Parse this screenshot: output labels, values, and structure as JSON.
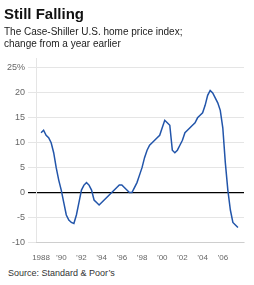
{
  "chart_data": {
    "type": "line",
    "title": "Still Falling",
    "subtitle": "The Case-Shiller U.S. home price index;\nchange from a year earlier",
    "source": "Source: Standard & Poor’s",
    "color": "#2255aa",
    "grid": "y",
    "xlim": [
      1987.5,
      2008.1
    ],
    "xticks": [
      1988,
      {
        "value": 1990,
        "label": "’90"
      },
      {
        "value": 1992,
        "label": "’92"
      },
      {
        "value": 1994,
        "label": "’94"
      },
      {
        "value": 1996,
        "label": "’96"
      },
      {
        "value": 1998,
        "label": "’98"
      },
      {
        "value": 2000,
        "label": "’00"
      },
      {
        "value": 2002,
        "label": "’02"
      },
      {
        "value": 2004,
        "label": "’04"
      },
      {
        "value": 2006,
        "label": "’06"
      }
    ],
    "ylim": [
      -10,
      27
    ],
    "yticks": [
      -10,
      -5,
      0,
      5,
      10,
      15,
      20,
      {
        "value": 25,
        "label": "25%"
      }
    ],
    "x": [
      1988.0,
      1988.25,
      1988.5,
      1988.75,
      1989.0,
      1989.25,
      1989.5,
      1989.75,
      1990.0,
      1990.25,
      1990.5,
      1990.75,
      1991.0,
      1991.25,
      1991.5,
      1991.75,
      1992.0,
      1992.25,
      1992.5,
      1992.75,
      1993.0,
      1993.25,
      1993.5,
      1993.75,
      1994.0,
      1994.25,
      1994.5,
      1994.75,
      1995.0,
      1995.25,
      1995.5,
      1995.75,
      1996.0,
      1996.25,
      1996.5,
      1996.75,
      1997.0,
      1997.25,
      1997.5,
      1997.75,
      1998.0,
      1998.25,
      1998.5,
      1998.75,
      1999.0,
      1999.25,
      1999.5,
      1999.75,
      2000.0,
      2000.25,
      2000.5,
      2000.75,
      2001.0,
      2001.25,
      2001.5,
      2001.75,
      2002.0,
      2002.25,
      2002.5,
      2002.75,
      2003.0,
      2003.25,
      2003.5,
      2003.75,
      2004.0,
      2004.25,
      2004.5,
      2004.75,
      2005.0,
      2005.25,
      2005.5,
      2005.75,
      2006.0,
      2006.25,
      2006.5,
      2006.75,
      2007.0,
      2007.25,
      2007.5
    ],
    "values": [
      12.0,
      12.5,
      11.5,
      11.0,
      10.0,
      8.0,
      5.0,
      2.5,
      0.5,
      -2.0,
      -4.5,
      -5.5,
      -6.0,
      -6.2,
      -4.5,
      -2.0,
      0.5,
      1.5,
      2.0,
      1.5,
      0.5,
      -1.5,
      -2.0,
      -2.5,
      -2.0,
      -1.5,
      -1.0,
      -0.5,
      0.0,
      0.5,
      1.0,
      1.5,
      1.5,
      1.0,
      0.5,
      0.0,
      0.0,
      1.0,
      2.0,
      3.5,
      5.0,
      7.0,
      8.5,
      9.5,
      10.0,
      10.5,
      11.0,
      11.5,
      13.0,
      14.5,
      14.0,
      13.5,
      8.5,
      8.0,
      8.5,
      9.5,
      10.5,
      12.0,
      12.5,
      13.0,
      13.5,
      14.0,
      15.0,
      15.5,
      16.0,
      17.5,
      19.5,
      20.5,
      20.0,
      19.0,
      18.0,
      16.5,
      13.0,
      6.0,
      0.5,
      -3.5,
      -6.0,
      -6.5,
      -7.0
    ]
  }
}
